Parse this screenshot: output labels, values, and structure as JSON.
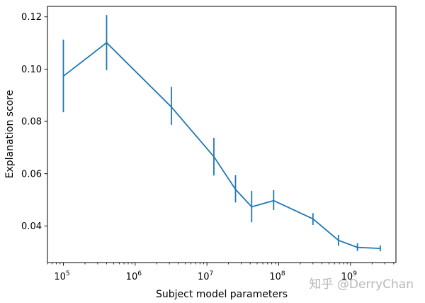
{
  "chart_data": {
    "type": "line",
    "xlabel": "Subject model parameters",
    "ylabel": "Explanation score",
    "xscale": "log",
    "xlim": [
      60000,
      4300000000
    ],
    "ylim": [
      0.026,
      0.124
    ],
    "grid": false,
    "color": "#1f77b4",
    "x_ticks": [
      {
        "value": 100000,
        "base": "10",
        "exp": "5"
      },
      {
        "value": 1000000,
        "base": "10",
        "exp": "6"
      },
      {
        "value": 10000000,
        "base": "10",
        "exp": "7"
      },
      {
        "value": 100000000,
        "base": "10",
        "exp": "8"
      },
      {
        "value": 1000000000,
        "base": "10",
        "exp": "9"
      }
    ],
    "y_ticks": [
      {
        "value": 0.04,
        "label": "0.04"
      },
      {
        "value": 0.06,
        "label": "0.06"
      },
      {
        "value": 0.08,
        "label": "0.08"
      },
      {
        "value": 0.1,
        "label": "0.10"
      },
      {
        "value": 0.12,
        "label": "0.12"
      }
    ],
    "series": [
      {
        "points": [
          {
            "x": 100000,
            "y": 0.0973,
            "err_low": 0.0835,
            "err_high": 0.1113
          },
          {
            "x": 400000,
            "y": 0.1101,
            "err_low": 0.0996,
            "err_high": 0.1207
          },
          {
            "x": 3200000,
            "y": 0.0855,
            "err_low": 0.0787,
            "err_high": 0.0932
          },
          {
            "x": 12500000,
            "y": 0.0665,
            "err_low": 0.0593,
            "err_high": 0.0737
          },
          {
            "x": 25000000,
            "y": 0.054,
            "err_low": 0.049,
            "err_high": 0.0594
          },
          {
            "x": 42000000,
            "y": 0.0473,
            "err_low": 0.0414,
            "err_high": 0.0534
          },
          {
            "x": 85000000,
            "y": 0.0497,
            "err_low": 0.0461,
            "err_high": 0.0537
          },
          {
            "x": 300000000,
            "y": 0.0427,
            "err_low": 0.0404,
            "err_high": 0.0449
          },
          {
            "x": 680000000,
            "y": 0.0345,
            "err_low": 0.0324,
            "err_high": 0.0366
          },
          {
            "x": 1250000000,
            "y": 0.0318,
            "err_low": 0.0304,
            "err_high": 0.0334
          },
          {
            "x": 2600000000,
            "y": 0.0314,
            "err_low": 0.0303,
            "err_high": 0.0326
          }
        ]
      }
    ]
  },
  "watermark": "知乎 @DerryChan"
}
